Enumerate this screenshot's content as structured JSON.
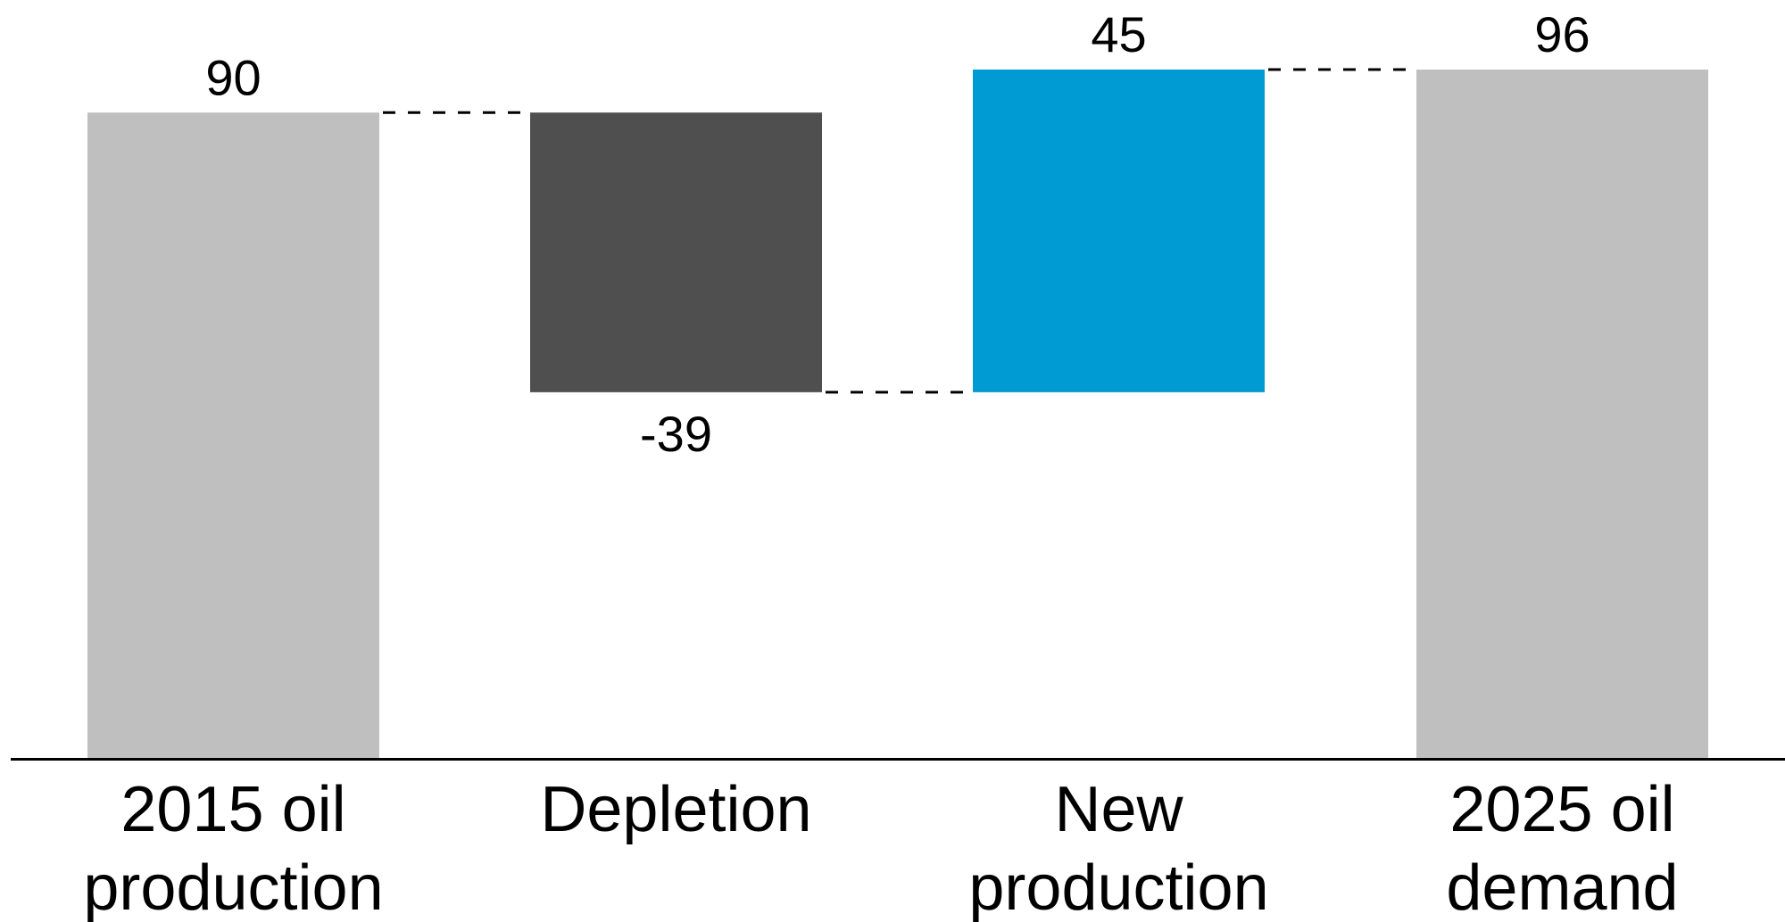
{
  "chart_data": {
    "type": "bar",
    "subtype": "waterfall",
    "categories": [
      "2015 oil production",
      "Depletion",
      "New production",
      "2025 oil demand"
    ],
    "category_label_lines": [
      [
        "2015 oil",
        "production"
      ],
      [
        "Depletion"
      ],
      [
        "New",
        "production"
      ],
      [
        "2025 oil",
        "demand"
      ]
    ],
    "values": [
      90,
      -39,
      45,
      96
    ],
    "data_labels": [
      "90",
      "-39",
      "45",
      "96"
    ],
    "bar_kinds": [
      "total",
      "delta",
      "delta",
      "total"
    ],
    "colors": {
      "total": "#bfbfbf",
      "decrease": "#4f4f4f",
      "increase": "#009bd2",
      "connector": "#000000",
      "axis": "#000000"
    },
    "connectors": "dashed",
    "ylim": [
      0,
      96
    ],
    "grid": false,
    "legend": "none",
    "title": "",
    "xlabel": "",
    "ylabel": ""
  }
}
